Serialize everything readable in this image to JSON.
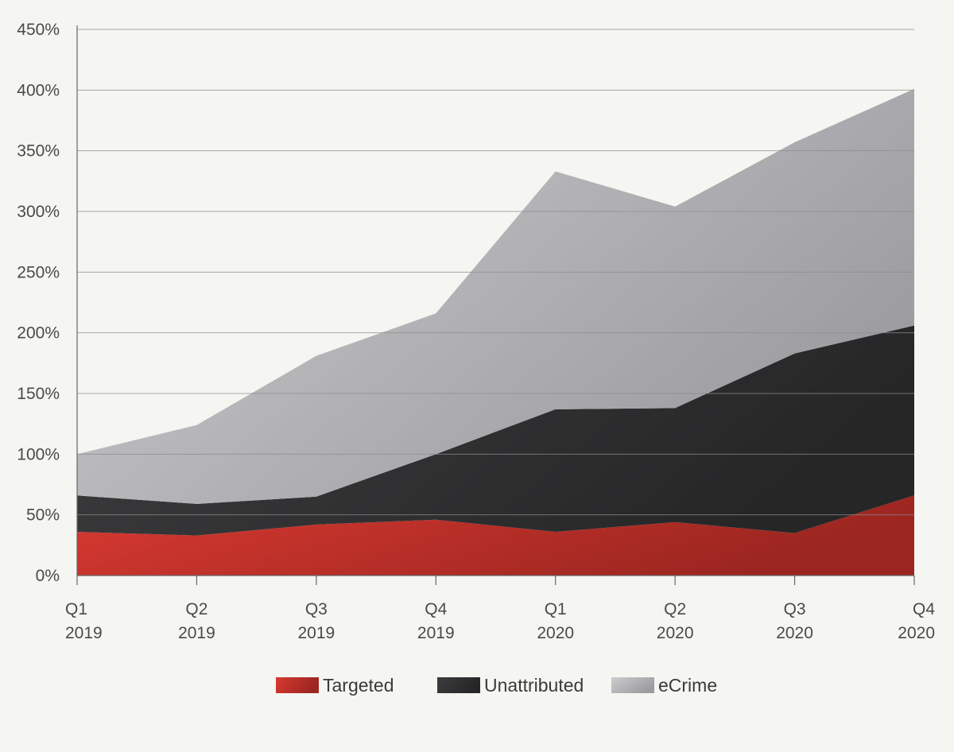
{
  "colors": {
    "background": "#f5f5f1",
    "targeted": "#c8302a",
    "unattributed": "#333333",
    "ecrime": "#b2b2b5",
    "gridline": "#8c8c8c",
    "axis": "#666666"
  },
  "chart_data": {
    "type": "area",
    "stacked": true,
    "title": "",
    "xlabel": "",
    "ylabel": "",
    "categories": [
      [
        "Q1",
        "2019"
      ],
      [
        "Q2",
        "2019"
      ],
      [
        "Q3",
        "2019"
      ],
      [
        "Q4",
        "2019"
      ],
      [
        "Q1",
        "2020"
      ],
      [
        "Q2",
        "2020"
      ],
      [
        "Q3",
        "2020"
      ],
      [
        "Q4",
        "2020"
      ]
    ],
    "yticks": [
      0,
      50,
      100,
      150,
      200,
      250,
      300,
      350,
      400,
      450
    ],
    "ytick_labels": [
      "0%",
      "50%",
      "100%",
      "150%",
      "200%",
      "250%",
      "300%",
      "350%",
      "400%",
      "450%"
    ],
    "ylim": [
      0,
      450
    ],
    "grid": true,
    "legend_position": "bottom-center",
    "series": [
      {
        "name": "Targeted",
        "key": "targeted",
        "values": [
          36,
          33,
          42,
          46,
          36,
          44,
          35,
          66
        ]
      },
      {
        "name": "Unattributed",
        "key": "unattributed",
        "values": [
          30,
          26,
          23,
          54,
          101,
          94,
          148,
          140
        ]
      },
      {
        "name": "eCrime",
        "key": "ecrime",
        "values": [
          34,
          65,
          116,
          116,
          196,
          166,
          174,
          195
        ]
      }
    ]
  }
}
